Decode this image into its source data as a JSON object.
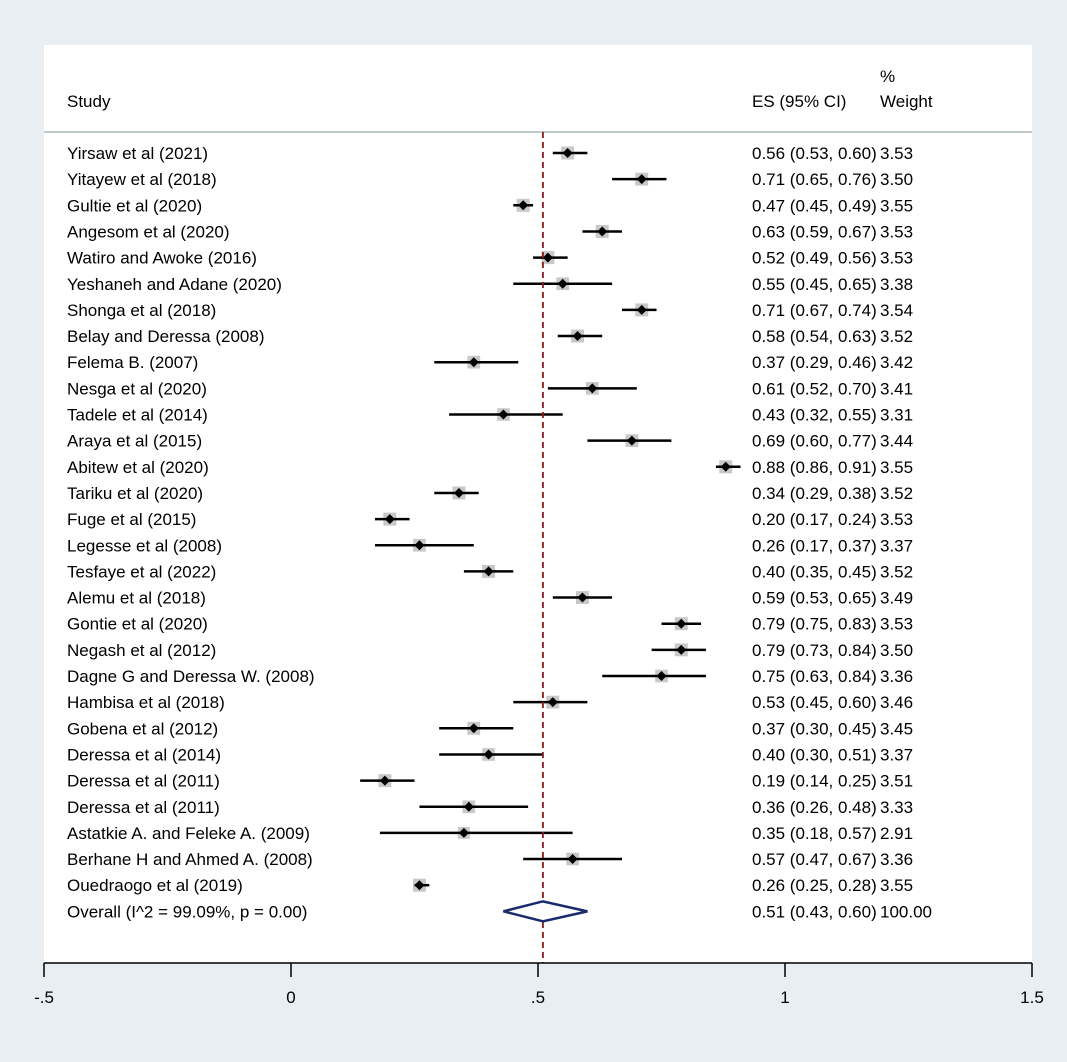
{
  "chart_data": {
    "type": "forest",
    "headers": {
      "study": "Study",
      "es": "ES (95% CI)",
      "weight_line1": "%",
      "weight_line2": "Weight"
    },
    "xlim": [
      -0.5,
      1.5
    ],
    "xticks": [
      -0.5,
      0,
      0.5,
      1,
      1.5
    ],
    "xtick_labels": [
      "-.5",
      "0",
      ".5",
      "1",
      "1.5"
    ],
    "reference_line": 0.51,
    "studies": [
      {
        "label": "Yirsaw et al (2021)",
        "es": 0.56,
        "lo": 0.53,
        "hi": 0.6,
        "ci_text": "0.56 (0.53, 0.60)",
        "weight": "3.53"
      },
      {
        "label": "Yitayew et al (2018)",
        "es": 0.71,
        "lo": 0.65,
        "hi": 0.76,
        "ci_text": "0.71 (0.65, 0.76)",
        "weight": "3.50"
      },
      {
        "label": "Gultie et al (2020)",
        "es": 0.47,
        "lo": 0.45,
        "hi": 0.49,
        "ci_text": "0.47 (0.45, 0.49)",
        "weight": "3.55"
      },
      {
        "label": "Angesom et al (2020)",
        "es": 0.63,
        "lo": 0.59,
        "hi": 0.67,
        "ci_text": "0.63 (0.59, 0.67)",
        "weight": "3.53"
      },
      {
        "label": "Watiro and Awoke (2016)",
        "es": 0.52,
        "lo": 0.49,
        "hi": 0.56,
        "ci_text": "0.52 (0.49, 0.56)",
        "weight": "3.53"
      },
      {
        "label": "Yeshaneh and Adane (2020)",
        "es": 0.55,
        "lo": 0.45,
        "hi": 0.65,
        "ci_text": "0.55 (0.45, 0.65)",
        "weight": "3.38"
      },
      {
        "label": "Shonga et al (2018)",
        "es": 0.71,
        "lo": 0.67,
        "hi": 0.74,
        "ci_text": "0.71 (0.67, 0.74)",
        "weight": "3.54"
      },
      {
        "label": "Belay and Deressa (2008)",
        "es": 0.58,
        "lo": 0.54,
        "hi": 0.63,
        "ci_text": "0.58 (0.54, 0.63)",
        "weight": "3.52"
      },
      {
        "label": "Felema B. (2007)",
        "es": 0.37,
        "lo": 0.29,
        "hi": 0.46,
        "ci_text": "0.37 (0.29, 0.46)",
        "weight": "3.42"
      },
      {
        "label": "Nesga et al (2020)",
        "es": 0.61,
        "lo": 0.52,
        "hi": 0.7,
        "ci_text": "0.61 (0.52, 0.70)",
        "weight": "3.41"
      },
      {
        "label": "Tadele et al (2014)",
        "es": 0.43,
        "lo": 0.32,
        "hi": 0.55,
        "ci_text": "0.43 (0.32, 0.55)",
        "weight": "3.31"
      },
      {
        "label": "Araya et al (2015)",
        "es": 0.69,
        "lo": 0.6,
        "hi": 0.77,
        "ci_text": "0.69 (0.60, 0.77)",
        "weight": "3.44"
      },
      {
        "label": "Abitew et al (2020)",
        "es": 0.88,
        "lo": 0.86,
        "hi": 0.91,
        "ci_text": "0.88 (0.86, 0.91)",
        "weight": "3.55"
      },
      {
        "label": "Tariku et al (2020)",
        "es": 0.34,
        "lo": 0.29,
        "hi": 0.38,
        "ci_text": "0.34 (0.29, 0.38)",
        "weight": "3.52"
      },
      {
        "label": "Fuge et al (2015)",
        "es": 0.2,
        "lo": 0.17,
        "hi": 0.24,
        "ci_text": "0.20 (0.17, 0.24)",
        "weight": "3.53"
      },
      {
        "label": "Legesse et al (2008)",
        "es": 0.26,
        "lo": 0.17,
        "hi": 0.37,
        "ci_text": "0.26 (0.17, 0.37)",
        "weight": "3.37"
      },
      {
        "label": "Tesfaye et al (2022)",
        "es": 0.4,
        "lo": 0.35,
        "hi": 0.45,
        "ci_text": "0.40 (0.35, 0.45)",
        "weight": "3.52"
      },
      {
        "label": "Alemu et al (2018)",
        "es": 0.59,
        "lo": 0.53,
        "hi": 0.65,
        "ci_text": "0.59 (0.53, 0.65)",
        "weight": "3.49"
      },
      {
        "label": "Gontie et al (2020)",
        "es": 0.79,
        "lo": 0.75,
        "hi": 0.83,
        "ci_text": "0.79 (0.75, 0.83)",
        "weight": "3.53"
      },
      {
        "label": "Negash et al (2012)",
        "es": 0.79,
        "lo": 0.73,
        "hi": 0.84,
        "ci_text": "0.79 (0.73, 0.84)",
        "weight": "3.50"
      },
      {
        "label": "Dagne G and Deressa W. (2008)",
        "es": 0.75,
        "lo": 0.63,
        "hi": 0.84,
        "ci_text": "0.75 (0.63, 0.84)",
        "weight": "3.36"
      },
      {
        "label": "Hambisa et al (2018)",
        "es": 0.53,
        "lo": 0.45,
        "hi": 0.6,
        "ci_text": "0.53 (0.45, 0.60)",
        "weight": "3.46"
      },
      {
        "label": "Gobena et al (2012)",
        "es": 0.37,
        "lo": 0.3,
        "hi": 0.45,
        "ci_text": "0.37 (0.30, 0.45)",
        "weight": "3.45"
      },
      {
        "label": "Deressa et al (2014)",
        "es": 0.4,
        "lo": 0.3,
        "hi": 0.51,
        "ci_text": "0.40 (0.30, 0.51)",
        "weight": "3.37"
      },
      {
        "label": "Deressa et al (2011)",
        "es": 0.19,
        "lo": 0.14,
        "hi": 0.25,
        "ci_text": "0.19 (0.14, 0.25)",
        "weight": "3.51"
      },
      {
        "label": "Deressa et al (2011)",
        "es": 0.36,
        "lo": 0.26,
        "hi": 0.48,
        "ci_text": "0.36 (0.26, 0.48)",
        "weight": "3.33"
      },
      {
        "label": "Astatkie A. and Feleke A. (2009)",
        "es": 0.35,
        "lo": 0.18,
        "hi": 0.57,
        "ci_text": "0.35 (0.18, 0.57)",
        "weight": "2.91"
      },
      {
        "label": "Berhane H and Ahmed A. (2008)",
        "es": 0.57,
        "lo": 0.47,
        "hi": 0.67,
        "ci_text": "0.57 (0.47, 0.67)",
        "weight": "3.36"
      },
      {
        "label": "Ouedraogo et al (2019)",
        "es": 0.26,
        "lo": 0.25,
        "hi": 0.28,
        "ci_text": "0.26 (0.25, 0.28)",
        "weight": "3.55"
      }
    ],
    "overall": {
      "label": "Overall  (I^2 = 99.09%, p = 0.00)",
      "es": 0.51,
      "lo": 0.43,
      "hi": 0.6,
      "ci_text": "0.51 (0.43, 0.60)",
      "weight": "100.00"
    },
    "colors": {
      "background": "#e8eef2",
      "panel": "#ffffff",
      "marker": "#000000",
      "box": "#c8c8c8",
      "reference_line": "#8b1a1a",
      "diamond": "#1a2a6c",
      "header_rule": "#c0c8cc"
    }
  }
}
